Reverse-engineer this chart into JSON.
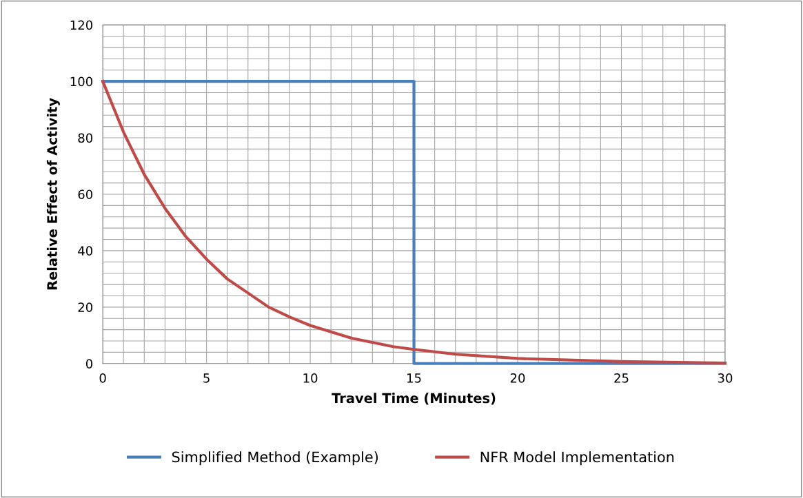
{
  "chart_data": {
    "type": "line",
    "xlabel": "Travel Time (Minutes)",
    "ylabel": "Relative Effect of Activity",
    "series": [
      {
        "name": "Simplified Method (Example)",
        "color": "#4a7ebb",
        "x": [
          0,
          15,
          15,
          30
        ],
        "values": [
          100,
          100,
          0,
          0
        ]
      },
      {
        "name": "NFR Model Implementation",
        "color": "#be4b48",
        "x": [
          0,
          1,
          2,
          3,
          4,
          5,
          6,
          7,
          8,
          9,
          10,
          12,
          14,
          15,
          17,
          20,
          25,
          30
        ],
        "values": [
          100,
          82,
          67,
          55,
          45,
          37,
          30,
          25,
          20,
          16.5,
          13.5,
          9,
          6,
          5,
          3.3,
          1.8,
          0.7,
          0.2
        ]
      }
    ],
    "xlim": [
      0,
      30
    ],
    "ylim": [
      0,
      120
    ],
    "xticks": [
      0,
      {
        "value": 1,
        "label": null
      },
      {
        "value": 2,
        "label": null
      },
      {
        "value": 3,
        "label": null
      },
      {
        "value": 4,
        "label": null
      },
      5,
      {
        "value": 6,
        "label": null
      },
      {
        "value": 7,
        "label": null
      },
      {
        "value": 8,
        "label": null
      },
      {
        "value": 9,
        "label": null
      },
      10,
      {
        "value": 11,
        "label": null
      },
      {
        "value": 12,
        "label": null
      },
      {
        "value": 13,
        "label": null
      },
      {
        "value": 14,
        "label": null
      },
      15,
      {
        "value": 16,
        "label": null
      },
      {
        "value": 17,
        "label": null
      },
      {
        "value": 18,
        "label": null
      },
      {
        "value": 19,
        "label": null
      },
      20,
      {
        "value": 21,
        "label": null
      },
      {
        "value": 22,
        "label": null
      },
      {
        "value": 23,
        "label": null
      },
      {
        "value": 24,
        "label": null
      },
      25,
      {
        "value": 26,
        "label": null
      },
      {
        "value": 27,
        "label": null
      },
      {
        "value": 28,
        "label": null
      },
      {
        "value": 29,
        "label": null
      },
      30
    ],
    "yticks": [
      0,
      {
        "value": 4,
        "label": null
      },
      {
        "value": 8,
        "label": null
      },
      {
        "value": 12,
        "label": null
      },
      {
        "value": 16,
        "label": null
      },
      20,
      {
        "value": 24,
        "label": null
      },
      {
        "value": 28,
        "label": null
      },
      {
        "value": 32,
        "label": null
      },
      {
        "value": 36,
        "label": null
      },
      40,
      {
        "value": 44,
        "label": null
      },
      {
        "value": 48,
        "label": null
      },
      {
        "value": 52,
        "label": null
      },
      {
        "value": 56,
        "label": null
      },
      60,
      {
        "value": 64,
        "label": null
      },
      {
        "value": 68,
        "label": null
      },
      {
        "value": 72,
        "label": null
      },
      {
        "value": 76,
        "label": null
      },
      80,
      {
        "value": 84,
        "label": null
      },
      {
        "value": 88,
        "label": null
      },
      {
        "value": 92,
        "label": null
      },
      {
        "value": 96,
        "label": null
      },
      100,
      {
        "value": 104,
        "label": null
      },
      {
        "value": 108,
        "label": null
      },
      {
        "value": 112,
        "label": null
      },
      {
        "value": 116,
        "label": null
      },
      120
    ],
    "grid": true,
    "legend": "bottom",
    "marker": "none",
    "line_style": "solid"
  }
}
